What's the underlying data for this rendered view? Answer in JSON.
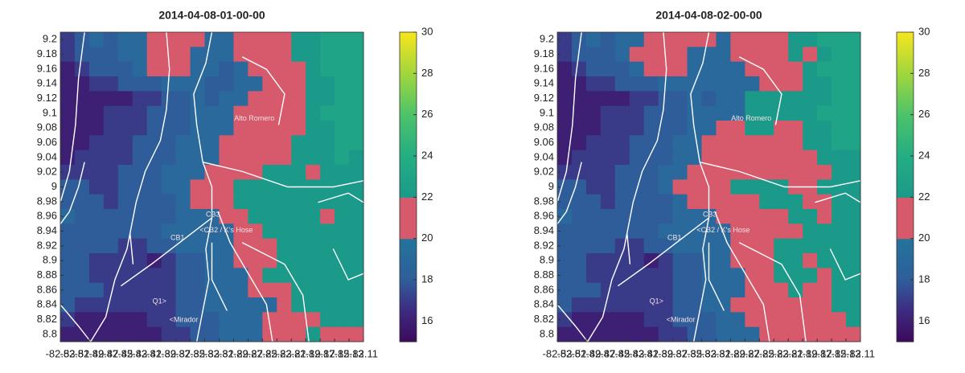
{
  "chart_data": [
    {
      "type": "heatmap",
      "title": "2014-04-08-01-00-00",
      "x": [
        -82.52,
        -82.5,
        -82.48,
        -82.46,
        -82.44,
        -82.42,
        -82.4,
        -82.38,
        -82.36,
        -82.34,
        -82.32,
        -82.3,
        -82.28,
        -82.26,
        -82.24,
        -82.22,
        -82.2,
        -82.18,
        -82.16,
        -82.14,
        -82.12
      ],
      "y": [
        9.2,
        9.18,
        9.16,
        9.14,
        9.12,
        9.1,
        9.08,
        9.06,
        9.04,
        9.02,
        9,
        8.98,
        8.96,
        8.94,
        8.92,
        8.9,
        8.88,
        8.86,
        8.84,
        8.82,
        8.8
      ],
      "z": [
        [
          17,
          18,
          19,
          18,
          19,
          19,
          21,
          21,
          21,
          20,
          19,
          19,
          21,
          21,
          21,
          20,
          22,
          22,
          23,
          23,
          23
        ],
        [
          17,
          18,
          18,
          18,
          19,
          19,
          21,
          21,
          21,
          19,
          19,
          19,
          21,
          21,
          20,
          21,
          22,
          22,
          23,
          23,
          23
        ],
        [
          16,
          17,
          18,
          18,
          18,
          19,
          21,
          21,
          20,
          19,
          19,
          18,
          19,
          20,
          20,
          21,
          21,
          22,
          23,
          23,
          23
        ],
        [
          16,
          16,
          17,
          17,
          18,
          18,
          18,
          19,
          19,
          19,
          18,
          18,
          19,
          19,
          20,
          21,
          21,
          22,
          22,
          23,
          23
        ],
        [
          16,
          16,
          16,
          16,
          16,
          17,
          17,
          18,
          18,
          19,
          18,
          19,
          19,
          20,
          21,
          21,
          21,
          22,
          22,
          23,
          23
        ],
        [
          16,
          16,
          16,
          17,
          17,
          17,
          18,
          18,
          18,
          19,
          19,
          19,
          21,
          21,
          21,
          21,
          21,
          22,
          23,
          23,
          23
        ],
        [
          16,
          16,
          16,
          17,
          17,
          17,
          18,
          18,
          18,
          19,
          19,
          19,
          21,
          21,
          21,
          21,
          21,
          22,
          22,
          23,
          23
        ],
        [
          16,
          16,
          17,
          17,
          17,
          18,
          18,
          18,
          19,
          19,
          19,
          21,
          21,
          21,
          21,
          21,
          22,
          22,
          22,
          23,
          23
        ],
        [
          16,
          17,
          17,
          17,
          17,
          18,
          18,
          18,
          19,
          19,
          19,
          21,
          21,
          21,
          21,
          21,
          22,
          22,
          22,
          23,
          22
        ],
        [
          17,
          17,
          17,
          17,
          18,
          18,
          18,
          19,
          19,
          19,
          21,
          21,
          21,
          21,
          22,
          22,
          22,
          21,
          22,
          22,
          22
        ],
        [
          18,
          18,
          17,
          17,
          18,
          18,
          18,
          19,
          19,
          21,
          21,
          21,
          22,
          22,
          22,
          22,
          22,
          22,
          22,
          22,
          22
        ],
        [
          18,
          18,
          18,
          17,
          18,
          18,
          18,
          18,
          19,
          21,
          21,
          21,
          22,
          22,
          22,
          22,
          22,
          22,
          22,
          22,
          22
        ],
        [
          19,
          18,
          18,
          18,
          18,
          18,
          18,
          18,
          19,
          19,
          19,
          21,
          21,
          22,
          22,
          22,
          22,
          22,
          21,
          22,
          22
        ],
        [
          18,
          18,
          18,
          18,
          18,
          18,
          18,
          19,
          19,
          19,
          19,
          19,
          21,
          21,
          22,
          22,
          22,
          22,
          22,
          22,
          22
        ],
        [
          18,
          18,
          18,
          18,
          17,
          17,
          18,
          18,
          19,
          19,
          19,
          19,
          21,
          21,
          21,
          22,
          22,
          22,
          22,
          22,
          22
        ],
        [
          18,
          18,
          17,
          17,
          17,
          17,
          16,
          17,
          18,
          18,
          19,
          19,
          21,
          21,
          21,
          22,
          22,
          22,
          22,
          22,
          22
        ],
        [
          18,
          18,
          17,
          17,
          17,
          17,
          17,
          17,
          18,
          18,
          19,
          19,
          19,
          21,
          22,
          22,
          22,
          22,
          22,
          22,
          22
        ],
        [
          18,
          18,
          18,
          17,
          17,
          17,
          17,
          17,
          18,
          18,
          19,
          19,
          19,
          21,
          21,
          21,
          22,
          22,
          22,
          22,
          22
        ],
        [
          18,
          17,
          17,
          17,
          17,
          17,
          17,
          17,
          18,
          18,
          19,
          19,
          19,
          19,
          19,
          21,
          22,
          22,
          22,
          22,
          22
        ],
        [
          17,
          16,
          16,
          16,
          16,
          16,
          17,
          17,
          18,
          18,
          18,
          19,
          19,
          19,
          21,
          21,
          21,
          21,
          22,
          22,
          22
        ],
        [
          16,
          16,
          16,
          16,
          16,
          16,
          16,
          17,
          17,
          18,
          18,
          19,
          19,
          19,
          21,
          21,
          21,
          22,
          21,
          21,
          21
        ]
      ],
      "xlim": [
        -82.53,
        -82.11
      ],
      "ylim": [
        8.79,
        9.21
      ],
      "xticks": [
        -82.53,
        -82.51,
        -82.49,
        -82.47,
        -82.45,
        -82.43,
        -82.41,
        -82.39,
        -82.37,
        -82.35,
        -82.33,
        -82.31,
        -82.29,
        -82.27,
        -82.25,
        -82.23,
        -82.21,
        -82.19,
        -82.17,
        -82.15,
        -82.13,
        -82.11
      ],
      "yticks": [
        8.8,
        8.82,
        8.84,
        8.86,
        8.88,
        8.9,
        8.92,
        8.94,
        8.96,
        8.98,
        9,
        9.02,
        9.04,
        9.06,
        9.08,
        9.1,
        9.12,
        9.14,
        9.16,
        9.18,
        9.2
      ],
      "clim": [
        15,
        30
      ],
      "cticks": [
        16,
        18,
        20,
        22,
        24,
        26,
        28,
        30
      ],
      "colormap": {
        "stops": [
          [
            15,
            "#3c0a5a"
          ],
          [
            16.5,
            "#3e2a80"
          ],
          [
            18,
            "#2f5d9a"
          ],
          [
            20,
            "#24749c"
          ],
          [
            22,
            "#1b9a8a"
          ],
          [
            24,
            "#24ad83"
          ],
          [
            26,
            "#4cc36a"
          ],
          [
            28,
            "#a0d63d"
          ],
          [
            30,
            "#f6e51e"
          ]
        ],
        "band": {
          "from": 20,
          "to": 22,
          "color": "#d65a6b"
        }
      },
      "annotations": [
        "Alto Romero",
        "CB3",
        "<CB2 / K's Hose",
        "CB1",
        "Q1>",
        "<Mirador"
      ]
    },
    {
      "type": "heatmap",
      "title": "2014-04-08-02-00-00",
      "x": [
        -82.52,
        -82.5,
        -82.48,
        -82.46,
        -82.44,
        -82.42,
        -82.4,
        -82.38,
        -82.36,
        -82.34,
        -82.32,
        -82.3,
        -82.28,
        -82.26,
        -82.24,
        -82.22,
        -82.2,
        -82.18,
        -82.16,
        -82.14,
        -82.12
      ],
      "y": [
        9.2,
        9.18,
        9.16,
        9.14,
        9.12,
        9.1,
        9.08,
        9.06,
        9.04,
        9.02,
        9,
        8.98,
        8.96,
        8.94,
        8.92,
        8.9,
        8.88,
        8.86,
        8.84,
        8.82,
        8.8
      ],
      "z": [
        [
          17,
          18,
          19,
          18,
          19,
          19,
          21,
          21,
          21,
          21,
          21,
          19,
          21,
          21,
          21,
          21,
          22,
          22,
          23,
          23,
          23
        ],
        [
          17,
          18,
          18,
          18,
          19,
          21,
          21,
          21,
          21,
          19,
          19,
          19,
          21,
          21,
          21,
          21,
          22,
          21,
          22,
          23,
          23
        ],
        [
          16,
          17,
          18,
          18,
          18,
          19,
          21,
          21,
          20,
          19,
          19,
          19,
          19,
          21,
          21,
          21,
          21,
          22,
          23,
          23,
          23
        ],
        [
          16,
          16,
          17,
          17,
          18,
          18,
          18,
          19,
          19,
          19,
          19,
          19,
          19,
          19,
          21,
          21,
          21,
          22,
          22,
          23,
          23
        ],
        [
          16,
          16,
          16,
          16,
          16,
          17,
          17,
          18,
          18,
          19,
          18,
          19,
          19,
          22,
          22,
          22,
          22,
          22,
          22,
          23,
          23
        ],
        [
          16,
          16,
          16,
          17,
          17,
          17,
          18,
          18,
          18,
          19,
          19,
          19,
          19,
          22,
          22,
          22,
          22,
          22,
          23,
          23,
          23
        ],
        [
          16,
          16,
          16,
          17,
          17,
          17,
          18,
          18,
          18,
          19,
          19,
          21,
          21,
          22,
          22,
          21,
          21,
          22,
          22,
          23,
          23
        ],
        [
          16,
          16,
          17,
          17,
          17,
          18,
          18,
          18,
          19,
          19,
          21,
          21,
          21,
          21,
          21,
          21,
          21,
          22,
          22,
          23,
          23
        ],
        [
          16,
          17,
          17,
          17,
          17,
          18,
          18,
          18,
          19,
          19,
          21,
          21,
          21,
          21,
          21,
          21,
          21,
          21,
          22,
          22,
          22
        ],
        [
          17,
          17,
          17,
          17,
          18,
          18,
          18,
          19,
          19,
          21,
          21,
          21,
          21,
          21,
          21,
          21,
          21,
          21,
          21,
          22,
          22
        ],
        [
          18,
          18,
          17,
          17,
          18,
          18,
          18,
          19,
          21,
          21,
          21,
          21,
          22,
          22,
          22,
          22,
          21,
          21,
          22,
          22,
          22
        ],
        [
          18,
          18,
          18,
          17,
          18,
          18,
          18,
          18,
          19,
          21,
          21,
          21,
          21,
          21,
          22,
          22,
          22,
          21,
          21,
          22,
          22
        ],
        [
          19,
          18,
          18,
          18,
          18,
          18,
          18,
          18,
          19,
          19,
          19,
          21,
          21,
          21,
          21,
          21,
          22,
          22,
          21,
          22,
          22
        ],
        [
          18,
          18,
          18,
          18,
          18,
          18,
          18,
          19,
          19,
          19,
          19,
          19,
          21,
          21,
          21,
          21,
          21,
          22,
          22,
          22,
          22
        ],
        [
          18,
          18,
          18,
          18,
          17,
          17,
          18,
          18,
          19,
          19,
          19,
          19,
          21,
          21,
          21,
          22,
          22,
          22,
          22,
          22,
          22
        ],
        [
          18,
          18,
          17,
          17,
          17,
          17,
          16,
          17,
          18,
          18,
          19,
          19,
          21,
          21,
          21,
          22,
          22,
          21,
          22,
          22,
          22
        ],
        [
          18,
          18,
          17,
          17,
          17,
          17,
          17,
          17,
          18,
          18,
          19,
          19,
          19,
          21,
          21,
          22,
          22,
          22,
          21,
          22,
          22
        ],
        [
          18,
          18,
          18,
          17,
          17,
          17,
          17,
          17,
          18,
          18,
          19,
          19,
          19,
          21,
          21,
          21,
          22,
          21,
          21,
          22,
          22
        ],
        [
          18,
          17,
          17,
          17,
          17,
          17,
          17,
          17,
          18,
          18,
          19,
          19,
          21,
          21,
          21,
          21,
          21,
          21,
          21,
          22,
          22
        ],
        [
          17,
          16,
          16,
          16,
          16,
          16,
          17,
          17,
          18,
          18,
          18,
          19,
          19,
          21,
          21,
          21,
          21,
          21,
          21,
          21,
          22
        ],
        [
          16,
          16,
          16,
          16,
          16,
          16,
          16,
          17,
          17,
          18,
          18,
          19,
          19,
          19,
          21,
          21,
          21,
          21,
          21,
          21,
          21
        ]
      ],
      "xlim": [
        -82.53,
        -82.11
      ],
      "ylim": [
        8.79,
        9.21
      ],
      "xticks": [
        -82.53,
        -82.51,
        -82.49,
        -82.47,
        -82.45,
        -82.43,
        -82.41,
        -82.39,
        -82.37,
        -82.35,
        -82.33,
        -82.31,
        -82.29,
        -82.27,
        -82.25,
        -82.23,
        -82.21,
        -82.19,
        -82.17,
        -82.15,
        -82.13,
        -82.11
      ],
      "yticks": [
        8.8,
        8.82,
        8.84,
        8.86,
        8.88,
        8.9,
        8.92,
        8.94,
        8.96,
        8.98,
        9,
        9.02,
        9.04,
        9.06,
        9.08,
        9.1,
        9.12,
        9.14,
        9.16,
        9.18,
        9.2
      ],
      "clim": [
        15,
        30
      ],
      "cticks": [
        16,
        18,
        20,
        22,
        24,
        26,
        28,
        30
      ],
      "colormap": {
        "stops": [
          [
            15,
            "#3c0a5a"
          ],
          [
            16.5,
            "#3e2a80"
          ],
          [
            18,
            "#2f5d9a"
          ],
          [
            20,
            "#24749c"
          ],
          [
            22,
            "#1b9a8a"
          ],
          [
            24,
            "#24ad83"
          ],
          [
            26,
            "#4cc36a"
          ],
          [
            28,
            "#a0d63d"
          ],
          [
            30,
            "#f6e51e"
          ]
        ],
        "band": {
          "from": 20,
          "to": 22,
          "color": "#d65a6b"
        }
      },
      "annotations": [
        "Alto Romero",
        "CB3",
        "<CB2 / K's Hose",
        "CB1",
        "Q1>",
        "<Mirador"
      ]
    }
  ]
}
